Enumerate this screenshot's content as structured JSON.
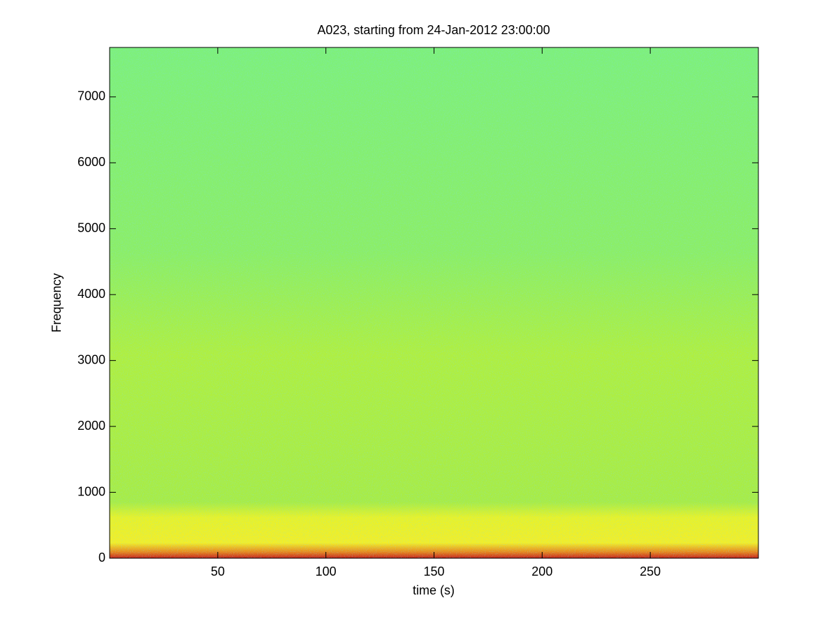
{
  "chart_data": {
    "type": "spectrogram",
    "title": "A023, starting from 24-Jan-2012 23:00:00",
    "x_label": "time (s)",
    "y_label": "Frequency",
    "xlim": [
      0,
      300
    ],
    "xticks": [
      50,
      100,
      150,
      200,
      250
    ],
    "ylim": [
      0,
      7750
    ],
    "yticks": [
      0,
      1000,
      2000,
      3000,
      4000,
      5000,
      6000,
      7000
    ]
  }
}
